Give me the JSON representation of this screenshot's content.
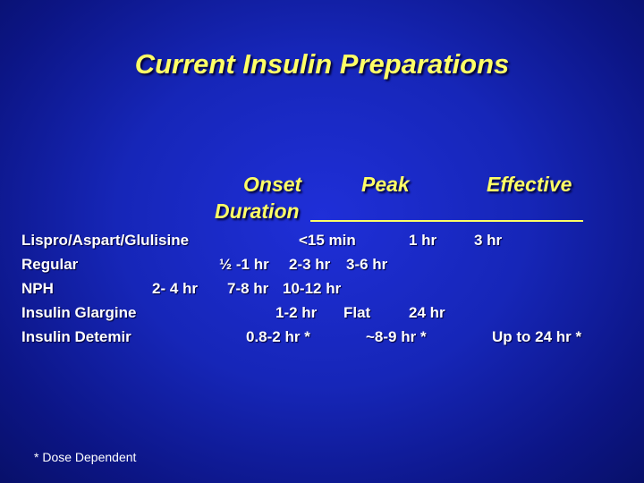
{
  "title": "Current Insulin Preparations",
  "headers": {
    "onset": "Onset",
    "peak": "Peak",
    "effective": "Effective",
    "duration": "Duration"
  },
  "rows": [
    {
      "name": "Lispro/Aspart/Glulisine",
      "onset": "<15 min",
      "peak": "1 hr",
      "duration": "3 hr"
    },
    {
      "name": "Regular",
      "onset": "½ -1 hr",
      "peak": "2-3 hr",
      "duration": "3-6 hr"
    },
    {
      "name": "NPH",
      "onset": "2- 4 hr",
      "peak": "7-8 hr",
      "duration": "10-12 hr"
    },
    {
      "name": "Insulin Glargine",
      "onset": "1-2 hr",
      "peak": "Flat",
      "duration": "24 hr"
    },
    {
      "name": "Insulin Detemir",
      "onset": "0.8-2 hr *",
      "peak": "~8-9 hr *",
      "duration": "Up to 24 hr *"
    }
  ],
  "footnote": "* Dose Dependent",
  "colors": {
    "title": "#ffff66",
    "background": "#1626b8",
    "text": "#ffffff"
  }
}
